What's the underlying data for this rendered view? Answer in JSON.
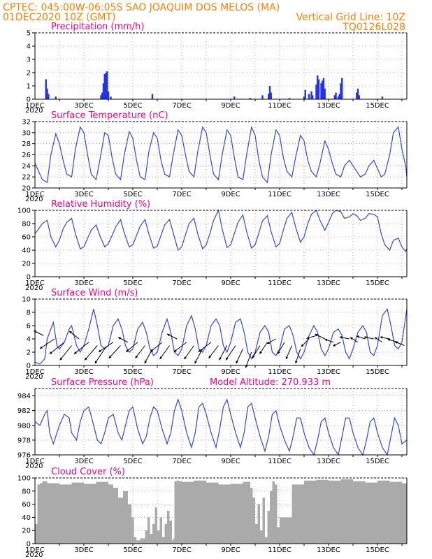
{
  "header": {
    "line1": "CPTEC:   045:00W-06:05S   SAO JOAQUIM DOS MELOS (MA)",
    "line2_left": "01DEC2020  10Z (GMT)",
    "line2_right": "Vertical Grid Line: 10Z",
    "line3_right": "TQ0126L028"
  },
  "colors": {
    "header": "#ff7f00",
    "title": "#ff0080",
    "line": "#3344ee",
    "bar": "#2233ee",
    "cloud": "#aaaaaa",
    "arrow": "#000000"
  },
  "x_axis": {
    "day_ticks": [
      "1DEC",
      "3DEC",
      "5DEC",
      "7DEC",
      "9DEC",
      "11DEC",
      "13DEC",
      "15DEC"
    ],
    "day_positions": [
      0,
      2,
      4,
      6,
      8,
      10,
      12,
      14
    ],
    "range": [
      0,
      15.2
    ],
    "year_label": "2020"
  },
  "chart_data": [
    {
      "type": "bar",
      "title": "Precipitation (mm/h)",
      "ylim": [
        0,
        5
      ],
      "yticks": [
        0,
        1,
        2,
        3,
        4,
        5
      ],
      "grid": true,
      "x": [
        0.45,
        0.5,
        0.55,
        0.85,
        2.7,
        2.75,
        2.8,
        2.85,
        2.9,
        2.95,
        3.0,
        3.1,
        4.8,
        8.15,
        8.8,
        9.3,
        9.55,
        9.6,
        9.65,
        10.4,
        11.0,
        11.05,
        11.2,
        11.3,
        11.35,
        11.5,
        11.55,
        11.6,
        11.7,
        11.75,
        11.8,
        11.85,
        12.25,
        12.3,
        12.4,
        12.45,
        12.5,
        12.55,
        13.15,
        13.2,
        13.25,
        14.2
      ],
      "values": [
        1.5,
        0.8,
        0.4,
        0.2,
        0.3,
        0.5,
        1.2,
        1.9,
        2.0,
        2.1,
        0.6,
        0.2,
        0.4,
        0.2,
        0.1,
        0.3,
        0.4,
        1.0,
        0.5,
        0.1,
        0.2,
        0.7,
        0.4,
        0.6,
        0.3,
        1.1,
        1.8,
        1.5,
        1.2,
        1.4,
        1.6,
        0.8,
        0.3,
        0.5,
        0.2,
        0.4,
        1.2,
        1.6,
        0.5,
        0.8,
        0.3,
        0.2
      ]
    },
    {
      "type": "line",
      "title": "Surface Temperature (nC)",
      "ylim": [
        20,
        32
      ],
      "yticks": [
        20,
        22,
        24,
        26,
        28,
        30,
        32
      ],
      "grid": true,
      "x": [
        0.0,
        0.15,
        0.3,
        0.5,
        0.65,
        0.85,
        1.0,
        1.15,
        1.3,
        1.5,
        1.65,
        1.85,
        2.0,
        2.15,
        2.3,
        2.5,
        2.65,
        2.85,
        3.0,
        3.15,
        3.3,
        3.5,
        3.65,
        3.85,
        4.0,
        4.15,
        4.3,
        4.5,
        4.65,
        4.85,
        5.0,
        5.15,
        5.3,
        5.5,
        5.65,
        5.85,
        6.0,
        6.15,
        6.3,
        6.5,
        6.65,
        6.85,
        7.0,
        7.15,
        7.3,
        7.5,
        7.65,
        7.85,
        8.0,
        8.15,
        8.3,
        8.5,
        8.65,
        8.85,
        9.0,
        9.15,
        9.3,
        9.5,
        9.65,
        9.85,
        10.0,
        10.15,
        10.3,
        10.5,
        10.65,
        10.85,
        11.0,
        11.15,
        11.3,
        11.5,
        11.65,
        11.85,
        12.0,
        12.15,
        12.3,
        12.5,
        12.65,
        12.85,
        13.0,
        13.15,
        13.3,
        13.5,
        13.65,
        13.85,
        14.0,
        14.15,
        14.3,
        14.5,
        14.65,
        14.85,
        15.0,
        15.15,
        15.2
      ],
      "values": [
        24.5,
        23.0,
        21.5,
        21.0,
        26.0,
        29.8,
        28.0,
        25.0,
        22.5,
        22.0,
        27.0,
        31.0,
        30.0,
        26.0,
        22.5,
        21.5,
        25.0,
        30.0,
        29.5,
        25.5,
        22.5,
        21.5,
        26.0,
        30.2,
        29.0,
        25.0,
        22.0,
        21.5,
        26.5,
        30.0,
        29.0,
        25.0,
        22.5,
        22.0,
        26.0,
        30.5,
        29.5,
        26.0,
        23.0,
        22.0,
        26.5,
        31.0,
        30.0,
        26.0,
        22.5,
        21.5,
        26.0,
        30.5,
        29.5,
        25.5,
        22.0,
        21.5,
        26.0,
        31.0,
        29.5,
        25.0,
        22.0,
        21.0,
        26.0,
        30.5,
        29.5,
        25.5,
        23.0,
        22.0,
        25.5,
        29.5,
        28.5,
        25.0,
        23.0,
        22.0,
        24.5,
        28.5,
        27.0,
        24.5,
        22.5,
        22.0,
        24.0,
        25.0,
        24.0,
        23.0,
        22.0,
        22.5,
        24.0,
        25.0,
        23.5,
        22.0,
        22.5,
        26.0,
        30.0,
        31.0,
        27.0,
        24.0,
        22.0
      ]
    },
    {
      "type": "line",
      "title": "Relative Humidity (%)",
      "ylim": [
        0,
        100
      ],
      "yticks": [
        0,
        20,
        40,
        60,
        80,
        100
      ],
      "grid": true,
      "x": [
        0.0,
        0.15,
        0.3,
        0.5,
        0.65,
        0.85,
        1.0,
        1.15,
        1.3,
        1.5,
        1.65,
        1.85,
        2.0,
        2.15,
        2.3,
        2.5,
        2.65,
        2.85,
        3.0,
        3.15,
        3.3,
        3.5,
        3.65,
        3.85,
        4.0,
        4.15,
        4.3,
        4.5,
        4.65,
        4.85,
        5.0,
        5.15,
        5.3,
        5.5,
        5.65,
        5.85,
        6.0,
        6.15,
        6.3,
        6.5,
        6.65,
        6.85,
        7.0,
        7.15,
        7.3,
        7.5,
        7.65,
        7.85,
        8.0,
        8.15,
        8.3,
        8.5,
        8.65,
        8.85,
        9.0,
        9.15,
        9.3,
        9.5,
        9.65,
        9.85,
        10.0,
        10.15,
        10.3,
        10.5,
        10.65,
        10.85,
        11.0,
        11.15,
        11.3,
        11.5,
        11.65,
        11.85,
        12.0,
        12.15,
        12.3,
        12.5,
        12.65,
        12.85,
        13.0,
        13.15,
        13.3,
        13.5,
        13.65,
        13.85,
        14.0,
        14.15,
        14.3,
        14.5,
        14.65,
        14.85,
        15.0,
        15.15,
        15.2
      ],
      "values": [
        65.0,
        72.0,
        80.0,
        85.0,
        60.0,
        45.0,
        55.0,
        72.0,
        82.0,
        88.0,
        65.0,
        42.0,
        45.0,
        58.0,
        70.0,
        78.0,
        62.0,
        45.0,
        50.0,
        62.0,
        75.0,
        86.0,
        66.0,
        45.0,
        48.0,
        62.0,
        76.0,
        86.0,
        65.0,
        43.0,
        46.0,
        62.0,
        78.0,
        86.0,
        66.0,
        40.0,
        45.0,
        63.0,
        80.0,
        88.0,
        65.0,
        42.0,
        48.0,
        65.0,
        85.0,
        100.0,
        72.0,
        44.0,
        48.0,
        65.0,
        82.0,
        93.0,
        68.0,
        43.0,
        48.0,
        66.0,
        84.0,
        92.0,
        68.0,
        45.0,
        50.0,
        70.0,
        88.0,
        97.0,
        75.0,
        52.0,
        60.0,
        80.0,
        94.0,
        100.0,
        85.0,
        70.0,
        82.0,
        95.0,
        100.0,
        98.0,
        88.0,
        90.0,
        95.0,
        92.0,
        85.0,
        88.0,
        95.0,
        94.0,
        90.0,
        65.0,
        48.0,
        40.0,
        55.0,
        58.0,
        45.0,
        38.0,
        42.0
      ]
    },
    {
      "type": "line",
      "title": "Surface Wind (m/s)",
      "ylim": [
        0,
        10
      ],
      "yticks": [
        0,
        2,
        4,
        6,
        8,
        10
      ],
      "grid": true,
      "x": [
        0.0,
        0.2,
        0.4,
        0.5,
        0.6,
        0.75,
        0.9,
        1.0,
        1.2,
        1.4,
        1.5,
        1.7,
        1.85,
        2.0,
        2.2,
        2.4,
        2.55,
        2.7,
        2.85,
        3.0,
        3.2,
        3.4,
        3.55,
        3.7,
        3.85,
        4.0,
        4.2,
        4.4,
        4.55,
        4.7,
        4.85,
        5.0,
        5.2,
        5.4,
        5.55,
        5.7,
        5.85,
        6.0,
        6.2,
        6.4,
        6.55,
        6.7,
        6.85,
        7.0,
        7.2,
        7.4,
        7.55,
        7.7,
        7.85,
        8.0,
        8.2,
        8.4,
        8.55,
        8.7,
        8.85,
        9.0,
        9.2,
        9.4,
        9.55,
        9.7,
        9.85,
        10.0,
        10.2,
        10.4,
        10.55,
        10.7,
        10.85,
        11.0,
        11.2,
        11.4,
        11.55,
        11.7,
        11.85,
        12.0,
        12.2,
        12.4,
        12.55,
        12.7,
        12.85,
        13.0,
        13.2,
        13.4,
        13.55,
        13.7,
        13.85,
        14.0,
        14.2,
        14.4,
        14.55,
        14.7,
        14.85,
        15.0,
        15.2
      ],
      "values": [
        0.5,
        0.2,
        1.0,
        4.0,
        5.0,
        6.5,
        3.0,
        2.5,
        3.5,
        5.5,
        6.0,
        3.0,
        2.0,
        3.0,
        5.5,
        8.5,
        6.0,
        3.0,
        2.5,
        3.0,
        6.0,
        7.0,
        5.5,
        3.0,
        2.0,
        2.5,
        5.5,
        6.5,
        5.0,
        2.5,
        1.5,
        2.0,
        5.0,
        7.0,
        5.0,
        2.0,
        1.5,
        2.5,
        6.0,
        7.5,
        5.5,
        2.5,
        2.0,
        3.0,
        6.0,
        7.0,
        6.0,
        3.0,
        2.0,
        3.5,
        6.5,
        7.0,
        5.0,
        2.0,
        1.0,
        2.0,
        5.0,
        6.0,
        5.0,
        2.0,
        1.5,
        2.5,
        5.5,
        6.0,
        4.5,
        2.0,
        1.0,
        2.0,
        4.5,
        6.0,
        5.0,
        2.5,
        1.5,
        2.5,
        5.0,
        5.5,
        4.5,
        2.0,
        1.0,
        2.5,
        5.0,
        6.0,
        5.0,
        2.0,
        1.5,
        3.0,
        7.5,
        8.5,
        6.0,
        3.0,
        2.5,
        3.5,
        8.5
      ]
    },
    {
      "type": "line",
      "title": "Surface Pressure (hPa)",
      "annotation": "Model Altitude: 270.933 m",
      "ylim": [
        976,
        985
      ],
      "yticks": [
        976,
        978,
        980,
        982,
        984
      ],
      "grid": true,
      "x": [
        0.0,
        0.2,
        0.4,
        0.5,
        0.6,
        0.75,
        0.9,
        1.0,
        1.2,
        1.4,
        1.5,
        1.7,
        1.85,
        2.0,
        2.2,
        2.4,
        2.55,
        2.7,
        2.85,
        3.0,
        3.2,
        3.4,
        3.55,
        3.7,
        3.85,
        4.0,
        4.2,
        4.4,
        4.55,
        4.7,
        4.85,
        5.0,
        5.2,
        5.4,
        5.55,
        5.7,
        5.85,
        6.0,
        6.2,
        6.4,
        6.55,
        6.7,
        6.85,
        7.0,
        7.2,
        7.4,
        7.55,
        7.7,
        7.85,
        8.0,
        8.2,
        8.4,
        8.55,
        8.7,
        8.85,
        9.0,
        9.2,
        9.4,
        9.55,
        9.7,
        9.85,
        10.0,
        10.2,
        10.4,
        10.55,
        10.7,
        10.85,
        11.0,
        11.2,
        11.4,
        11.55,
        11.7,
        11.85,
        12.0,
        12.2,
        12.4,
        12.55,
        12.7,
        12.85,
        13.0,
        13.2,
        13.4,
        13.55,
        13.7,
        13.85,
        14.0,
        14.2,
        14.4,
        14.55,
        14.7,
        14.85,
        15.0,
        15.2
      ],
      "values": [
        980.5,
        980.0,
        981.5,
        982.0,
        979.0,
        977.5,
        979.0,
        980.0,
        981.5,
        981.0,
        979.0,
        978.0,
        980.5,
        982.0,
        982.5,
        980.0,
        978.0,
        977.5,
        979.0,
        981.0,
        981.5,
        979.0,
        978.0,
        980.0,
        982.0,
        982.5,
        979.5,
        977.5,
        978.5,
        981.0,
        982.5,
        982.0,
        979.5,
        977.5,
        979.0,
        982.0,
        983.5,
        982.0,
        979.0,
        977.0,
        979.0,
        982.5,
        983.0,
        981.5,
        979.0,
        977.0,
        979.5,
        982.5,
        983.5,
        981.5,
        979.0,
        977.0,
        979.0,
        982.5,
        983.0,
        981.0,
        978.5,
        976.5,
        978.5,
        981.5,
        982.0,
        980.0,
        978.0,
        976.5,
        978.5,
        981.0,
        981.0,
        979.0,
        977.0,
        976.0,
        978.0,
        980.5,
        981.0,
        979.0,
        977.0,
        976.0,
        978.5,
        981.0,
        981.0,
        979.0,
        977.0,
        976.0,
        978.0,
        980.5,
        981.0,
        979.0,
        977.0,
        976.0,
        978.5,
        981.0,
        980.0,
        977.5,
        978.0
      ]
    },
    {
      "type": "area",
      "title": "Cloud Cover (%)",
      "ylim": [
        0,
        100
      ],
      "yticks": [
        0,
        20,
        40,
        60,
        80,
        100
      ],
      "grid": true,
      "x": [
        0.0,
        0.1,
        0.2,
        0.3,
        0.5,
        1.0,
        1.5,
        2.0,
        2.5,
        3.0,
        3.2,
        3.4,
        3.6,
        3.8,
        3.95,
        4.05,
        4.15,
        4.3,
        4.5,
        4.6,
        4.7,
        4.8,
        4.9,
        5.0,
        5.1,
        5.2,
        5.3,
        5.4,
        5.5,
        5.6,
        5.65,
        5.7,
        5.8,
        5.9,
        6.0,
        6.5,
        7.0,
        7.5,
        8.0,
        8.5,
        8.8,
        8.9,
        9.0,
        9.1,
        9.2,
        9.3,
        9.4,
        9.5,
        9.6,
        9.7,
        9.8,
        9.9,
        10.0,
        10.5,
        11.0,
        11.5,
        12.0,
        12.5,
        13.0,
        13.5,
        14.0,
        14.5,
        15.0,
        15.2
      ],
      "values": [
        30,
        90,
        92,
        95,
        92,
        90,
        93,
        91,
        94,
        90,
        85,
        70,
        80,
        60,
        40,
        10,
        5,
        8,
        20,
        40,
        15,
        30,
        55,
        20,
        40,
        10,
        30,
        50,
        35,
        5,
        8,
        95,
        96,
        95,
        94,
        96,
        93,
        90,
        91,
        94,
        85,
        70,
        30,
        60,
        20,
        70,
        10,
        50,
        80,
        95,
        90,
        25,
        40,
        90,
        96,
        97,
        96,
        98,
        95,
        93,
        96,
        94,
        92,
        93
      ]
    }
  ],
  "wind_arrows": {
    "x": [
      0.35,
      0.8,
      1.2,
      1.5,
      1.8,
      2.2,
      2.55,
      2.85,
      3.2,
      3.5,
      3.8,
      4.2,
      4.5,
      4.8,
      5.2,
      5.5,
      5.8,
      6.2,
      6.5,
      6.85,
      7.2,
      7.5,
      7.85,
      8.2,
      8.5,
      8.85,
      9.2,
      9.5,
      9.85,
      10.2,
      10.5,
      10.85,
      11.2,
      11.5,
      11.85,
      12.2,
      12.5,
      12.85,
      13.2,
      13.5,
      13.85,
      14.2,
      14.5,
      14.85,
      15.1
    ],
    "y": [
      4.5,
      4.0,
      3.5,
      3.0,
      4.0,
      3.5,
      3.0,
      2.5,
      3.5,
      3.0,
      3.5,
      3.5,
      3.0,
      2.5,
      3.5,
      3.0,
      4.0,
      3.5,
      3.0,
      2.5,
      3.5,
      3.0,
      3.0,
      3.0,
      2.5,
      2.0,
      3.0,
      3.5,
      4.0,
      3.5,
      3.0,
      2.5,
      4.0,
      4.5,
      4.0,
      3.5,
      3.5,
      4.0,
      3.5,
      4.0,
      4.0,
      3.5,
      4.0,
      3.5,
      3.0
    ],
    "u": [
      -1.0,
      -1.5,
      -1.5,
      -1.2,
      -1.0,
      -1.5,
      -1.3,
      -1.0,
      -1.5,
      -1.2,
      -1.0,
      -1.2,
      -1.0,
      -0.8,
      -1.2,
      -1.0,
      -1.0,
      -1.3,
      -1.0,
      -0.8,
      -1.3,
      -1.0,
      -0.8,
      -1.0,
      -0.7,
      -0.6,
      -0.8,
      -0.8,
      -0.9,
      -0.7,
      -0.6,
      -0.5,
      -0.8,
      -1.0,
      -1.0,
      -0.9,
      -0.8,
      -1.0,
      -0.8,
      -0.9,
      -1.0,
      -0.8,
      -1.0,
      -1.1,
      -1.0
    ],
    "v": [
      0.5,
      -1.0,
      -1.2,
      -1.5,
      0.8,
      -1.2,
      -1.5,
      -1.5,
      -1.0,
      -1.3,
      0.5,
      -1.0,
      -1.3,
      -1.5,
      -1.0,
      -1.4,
      0.5,
      -1.0,
      -1.4,
      -1.5,
      -1.0,
      -1.3,
      -1.5,
      -1.5,
      -1.5,
      -1.6,
      -1.3,
      -1.2,
      -0.5,
      -1.2,
      -1.4,
      -1.5,
      -0.8,
      -0.3,
      0.5,
      0.3,
      -0.4,
      0.2,
      0.5,
      0.3,
      0.2,
      0.5,
      0.2,
      0.3,
      0.4
    ]
  }
}
